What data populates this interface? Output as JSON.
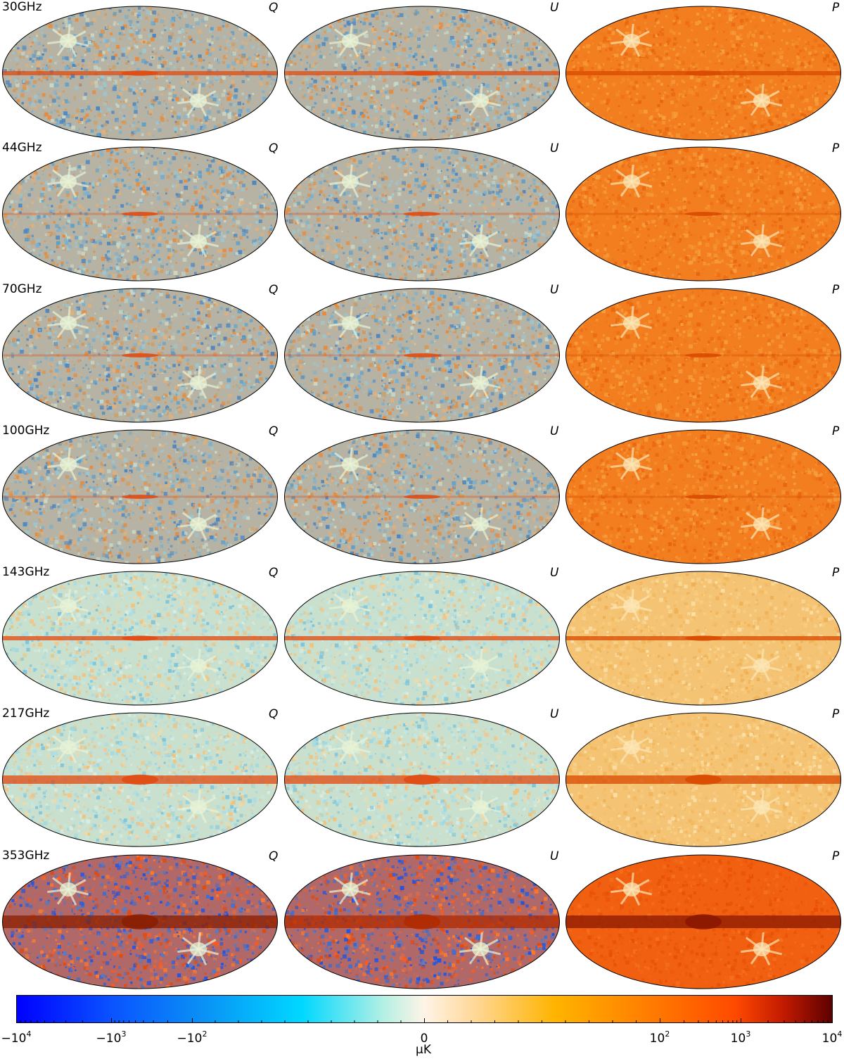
{
  "rows": [
    {
      "frequency": "30GHz",
      "labels": [
        "Q",
        "U",
        "P"
      ]
    },
    {
      "frequency": "44GHz",
      "labels": [
        "Q",
        "U",
        "P"
      ]
    },
    {
      "frequency": "70GHz",
      "labels": [
        "Q",
        "U",
        "P"
      ]
    },
    {
      "frequency": "100GHz",
      "labels": [
        "Q",
        "U",
        "P"
      ]
    },
    {
      "frequency": "143GHz",
      "labels": [
        "Q",
        "U",
        "P"
      ]
    },
    {
      "frequency": "217GHz",
      "labels": [
        "Q",
        "U",
        "P"
      ]
    },
    {
      "frequency": "353GHz",
      "labels": [
        "Q",
        "U",
        "P"
      ]
    }
  ],
  "colorbar": {
    "unit": "μK",
    "scale": "symmetric-log",
    "range": [
      -10000,
      10000
    ],
    "ticks": [
      {
        "base": "−10",
        "exp": "4"
      },
      {
        "base": "−10",
        "exp": "3"
      },
      {
        "base": "−10",
        "exp": "2"
      },
      {
        "base": "0",
        "exp": ""
      },
      {
        "base": "10",
        "exp": "2"
      },
      {
        "base": "10",
        "exp": "3"
      },
      {
        "base": "10",
        "exp": "4"
      }
    ],
    "colors": [
      "#0000ff",
      "#0a7bff",
      "#00d8ff",
      "#fff4e6",
      "#ffb400",
      "#ff4a00",
      "#5c0000"
    ]
  }
}
